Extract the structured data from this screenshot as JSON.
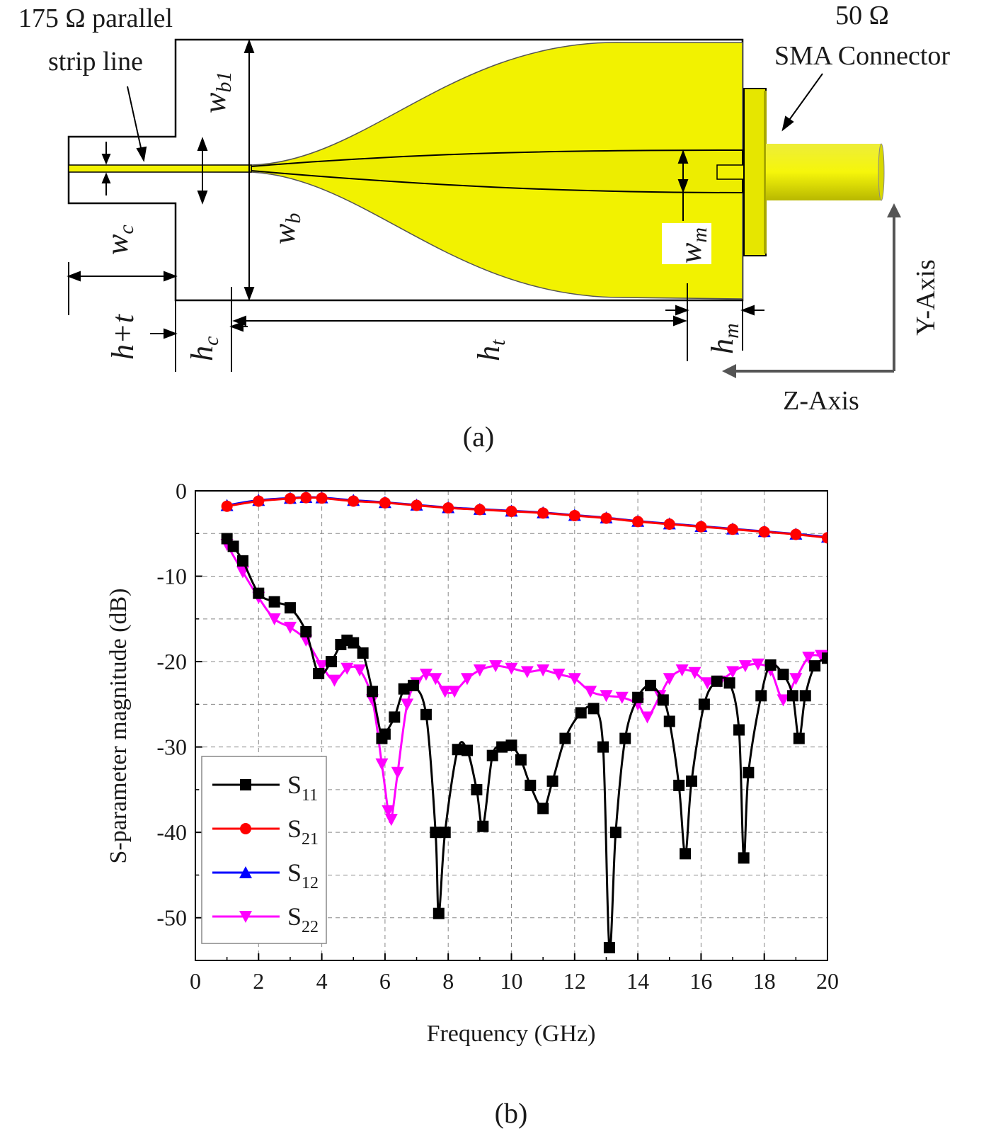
{
  "panel_a": {
    "label": "(a)",
    "strip_line_label": [
      "175 Ω parallel",
      "strip line"
    ],
    "connector_label": [
      "50 Ω",
      "SMA Connector"
    ],
    "axis_y_label": "Y-Axis",
    "axis_z_label": "Z-Axis",
    "dims": {
      "wb1": {
        "main": "w",
        "sub": "b1"
      },
      "wc": {
        "main": "w",
        "sub": "c"
      },
      "wb": {
        "main": "w",
        "sub": "b"
      },
      "wm": {
        "main": "w",
        "sub": "m"
      },
      "ht": {
        "main": "h",
        "sub": "+t"
      },
      "hc": {
        "main": "h",
        "sub": "c"
      },
      "htt": {
        "main": "h",
        "sub": "t"
      },
      "hm": {
        "main": "h",
        "sub": "m"
      }
    },
    "colors": {
      "metal": "#f2f200",
      "metal_dark": "#c8c800",
      "outline": "#000000"
    }
  },
  "panel_b": {
    "label": "(b)"
  },
  "chart_data": {
    "type": "line",
    "xlabel": "Frequency (GHz)",
    "ylabel": "S-parameter magnitude (dB)",
    "xlim": [
      0,
      20
    ],
    "ylim": [
      -55,
      0
    ],
    "xticks": [
      0,
      2,
      4,
      6,
      8,
      10,
      12,
      14,
      16,
      18,
      20
    ],
    "yticks": [
      0,
      -10,
      -20,
      -30,
      -40,
      -50
    ],
    "grid": true,
    "legend_position": "bottom-left",
    "series": [
      {
        "name": "S11",
        "name_main": "S",
        "name_sub": "11",
        "color": "#000000",
        "marker": "square",
        "x": [
          1.0,
          1.2,
          1.5,
          2.0,
          2.5,
          3.0,
          3.5,
          3.9,
          4.3,
          4.6,
          4.8,
          5.0,
          5.3,
          5.6,
          5.9,
          6.0,
          6.3,
          6.6,
          6.9,
          7.3,
          7.6,
          7.7,
          7.9,
          8.3,
          8.6,
          8.9,
          9.1,
          9.4,
          9.7,
          10.0,
          10.3,
          10.6,
          11.0,
          11.3,
          11.7,
          12.2,
          12.6,
          12.9,
          13.1,
          13.3,
          13.6,
          14.0,
          14.4,
          14.8,
          15.0,
          15.3,
          15.5,
          15.7,
          16.1,
          16.5,
          16.9,
          17.2,
          17.35,
          17.5,
          17.9,
          18.2,
          18.6,
          18.9,
          19.1,
          19.3,
          19.6,
          20.0
        ],
        "y": [
          -5.6,
          -6.5,
          -8.2,
          -12.0,
          -13.0,
          -13.7,
          -16.5,
          -21.4,
          -20.0,
          -18.0,
          -17.5,
          -17.8,
          -19.0,
          -23.5,
          -29.0,
          -28.5,
          -26.5,
          -23.2,
          -22.8,
          -26.2,
          -40.0,
          -49.5,
          -40.0,
          -30.3,
          -30.4,
          -35.0,
          -39.3,
          -31.0,
          -30.0,
          -29.8,
          -31.5,
          -34.5,
          -37.2,
          -34.0,
          -29.0,
          -26.0,
          -25.5,
          -30.0,
          -53.5,
          -40.0,
          -29.0,
          -24.2,
          -22.8,
          -24.5,
          -27.0,
          -34.5,
          -42.5,
          -34.0,
          -25.0,
          -22.3,
          -22.5,
          -28.0,
          -43.0,
          -33.0,
          -24.0,
          -20.4,
          -21.5,
          -24.0,
          -29.0,
          -24.0,
          -20.5,
          -19.6
        ]
      },
      {
        "name": "S21",
        "name_main": "S",
        "name_sub": "21",
        "color": "#ff0000",
        "marker": "circle",
        "x": [
          1,
          2,
          3,
          3.5,
          4,
          5,
          6,
          7,
          8,
          9,
          10,
          11,
          12,
          13,
          14,
          15,
          16,
          17,
          18,
          19,
          20
        ],
        "y": [
          -1.8,
          -1.2,
          -0.9,
          -0.8,
          -0.85,
          -1.2,
          -1.4,
          -1.7,
          -2.0,
          -2.2,
          -2.4,
          -2.6,
          -2.9,
          -3.2,
          -3.6,
          -3.9,
          -4.2,
          -4.5,
          -4.8,
          -5.1,
          -5.5
        ]
      },
      {
        "name": "S12",
        "name_main": "S",
        "name_sub": "12",
        "color": "#0000ff",
        "marker": "triangle-up",
        "x": [
          1,
          2,
          3,
          3.5,
          4,
          5,
          6,
          7,
          8,
          9,
          10,
          11,
          12,
          13,
          14,
          15,
          16,
          17,
          18,
          19,
          20
        ],
        "y": [
          -1.7,
          -1.1,
          -0.85,
          -0.75,
          -0.8,
          -1.1,
          -1.35,
          -1.65,
          -1.95,
          -2.15,
          -2.35,
          -2.55,
          -2.85,
          -3.15,
          -3.55,
          -3.85,
          -4.15,
          -4.45,
          -4.75,
          -5.05,
          -5.4
        ]
      },
      {
        "name": "S22",
        "name_main": "S",
        "name_sub": "22",
        "color": "#ff00ff",
        "marker": "triangle-down",
        "x": [
          1.0,
          1.5,
          2.0,
          2.5,
          3.0,
          3.5,
          4.0,
          4.4,
          4.8,
          5.2,
          5.6,
          5.9,
          6.1,
          6.2,
          6.4,
          6.7,
          7.0,
          7.3,
          7.6,
          7.9,
          8.2,
          8.6,
          9.0,
          9.5,
          10.0,
          10.5,
          11.0,
          11.5,
          12.0,
          12.5,
          13.0,
          13.5,
          14.0,
          14.3,
          14.7,
          15.0,
          15.4,
          15.8,
          16.2,
          16.6,
          17.0,
          17.4,
          17.8,
          18.2,
          18.6,
          19.0,
          19.4,
          19.8,
          20.0
        ],
        "y": [
          -6.3,
          -9.5,
          -12.5,
          -15.0,
          -16.0,
          -17.5,
          -20.5,
          -22.2,
          -20.8,
          -21.0,
          -24.5,
          -32.0,
          -37.5,
          -38.5,
          -33.0,
          -25.0,
          -22.5,
          -21.5,
          -22.0,
          -23.5,
          -23.5,
          -22.0,
          -21.0,
          -20.5,
          -20.8,
          -21.2,
          -21.0,
          -21.5,
          -22.0,
          -23.5,
          -24.0,
          -24.2,
          -25.0,
          -26.5,
          -24.0,
          -22.0,
          -21.0,
          -21.3,
          -22.5,
          -22.3,
          -21.2,
          -20.5,
          -20.3,
          -21.0,
          -24.5,
          -22.0,
          -19.5,
          -19.3,
          -19.4
        ]
      }
    ]
  }
}
